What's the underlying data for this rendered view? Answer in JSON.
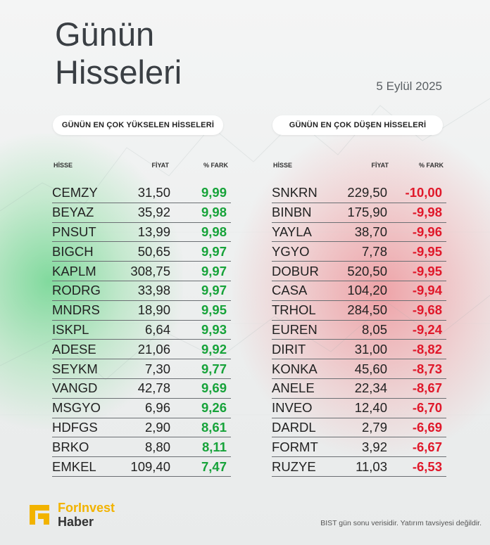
{
  "title_line1": "Günün",
  "title_line2": "Hisseleri",
  "date": "5 Eylül 2025",
  "gainers": {
    "heading": "GÜNÜN EN ÇOK YÜKSELEN HİSSELERİ",
    "columns": [
      "HİSSE",
      "FİYAT",
      "% FARK"
    ],
    "rows": [
      {
        "hisse": "CEMZY",
        "fiyat": "31,50",
        "fark": "9,99"
      },
      {
        "hisse": "BEYAZ",
        "fiyat": "35,92",
        "fark": "9,98"
      },
      {
        "hisse": "PNSUT",
        "fiyat": "13,99",
        "fark": "9,98"
      },
      {
        "hisse": "BIGCH",
        "fiyat": "50,65",
        "fark": "9,97"
      },
      {
        "hisse": "KAPLM",
        "fiyat": "308,75",
        "fark": "9,97"
      },
      {
        "hisse": "RODRG",
        "fiyat": "33,98",
        "fark": "9,97"
      },
      {
        "hisse": "MNDRS",
        "fiyat": "18,90",
        "fark": "9,95"
      },
      {
        "hisse": "ISKPL",
        "fiyat": "6,64",
        "fark": "9,93"
      },
      {
        "hisse": "ADESE",
        "fiyat": "21,06",
        "fark": "9,92"
      },
      {
        "hisse": "SEYKM",
        "fiyat": "7,30",
        "fark": "9,77"
      },
      {
        "hisse": "VANGD",
        "fiyat": "42,78",
        "fark": "9,69"
      },
      {
        "hisse": "MSGYO",
        "fiyat": "6,96",
        "fark": "9,26"
      },
      {
        "hisse": "HDFGS",
        "fiyat": "2,90",
        "fark": "8,61"
      },
      {
        "hisse": "BRKO",
        "fiyat": "8,80",
        "fark": "8,11"
      },
      {
        "hisse": "EMKEL",
        "fiyat": "109,40",
        "fark": "7,47"
      }
    ]
  },
  "losers": {
    "heading": "GÜNÜN EN ÇOK DÜŞEN HİSSELERİ",
    "columns": [
      "HİSSE",
      "FİYAT",
      "% FARK"
    ],
    "rows": [
      {
        "hisse": "SNKRN",
        "fiyat": "229,50",
        "fark": "-10,00"
      },
      {
        "hisse": "BINBN",
        "fiyat": "175,90",
        "fark": "-9,98"
      },
      {
        "hisse": "YAYLA",
        "fiyat": "38,70",
        "fark": "-9,96"
      },
      {
        "hisse": "YGYO",
        "fiyat": "7,78",
        "fark": "-9,95"
      },
      {
        "hisse": "DOBUR",
        "fiyat": "520,50",
        "fark": "-9,95"
      },
      {
        "hisse": "CASA",
        "fiyat": "104,20",
        "fark": "-9,94"
      },
      {
        "hisse": "TRHOL",
        "fiyat": "284,50",
        "fark": "-9,68"
      },
      {
        "hisse": "EUREN",
        "fiyat": "8,05",
        "fark": "-9,24"
      },
      {
        "hisse": "DIRIT",
        "fiyat": "31,00",
        "fark": "-8,82"
      },
      {
        "hisse": "KONKA",
        "fiyat": "45,60",
        "fark": "-8,73"
      },
      {
        "hisse": "ANELE",
        "fiyat": "22,34",
        "fark": "-8,67"
      },
      {
        "hisse": "INVEO",
        "fiyat": "12,40",
        "fark": "-6,70"
      },
      {
        "hisse": "DARDL",
        "fiyat": "2,79",
        "fark": "-6,69"
      },
      {
        "hisse": "FORMT",
        "fiyat": "3,92",
        "fark": "-6,67"
      },
      {
        "hisse": "RUZYE",
        "fiyat": "11,03",
        "fark": "-6,53"
      }
    ]
  },
  "brand": {
    "line1": "ForInvest",
    "line2": "Haber",
    "icon": "forinvest-logo-icon",
    "accent": "#f2b300"
  },
  "footnote": "BIST gün sonu verisidir. Yatırım tavsiyesi değildir.",
  "colors": {
    "positive": "#17a33a",
    "negative": "#e0182a"
  }
}
